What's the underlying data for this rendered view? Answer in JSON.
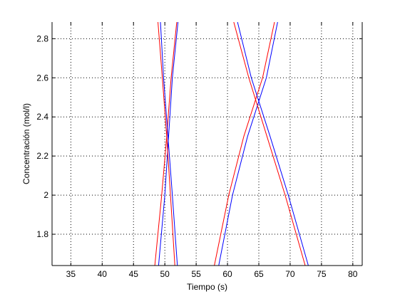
{
  "chart_data": {
    "type": "line",
    "title": "",
    "xlabel": "Tiempo (s)",
    "ylabel": "Concentración (mol/l)",
    "xlim": [
      32,
      81.5
    ],
    "ylim": [
      1.64,
      2.885
    ],
    "xticks": [
      35,
      40,
      45,
      50,
      55,
      60,
      65,
      70,
      75,
      80
    ],
    "yticks": [
      1.8,
      2,
      2.2,
      2.4,
      2.6,
      2.8
    ],
    "ytick_labels": [
      "1.8",
      "2",
      "2.2",
      "2.4",
      "2.6",
      "2.8"
    ],
    "grid": true,
    "grid_style": "dotted",
    "legend": "none",
    "series": [
      {
        "color": "#ff0000",
        "x": [
          48.4,
          49.5,
          50.3,
          51.0,
          51.9
        ],
        "y": [
          1.64,
          2.0,
          2.3,
          2.6,
          2.885
        ]
      },
      {
        "color": "#0000ff",
        "x": [
          49.0,
          50.0,
          50.6,
          51.2,
          52.1
        ],
        "y": [
          1.64,
          2.0,
          2.3,
          2.6,
          2.885
        ]
      },
      {
        "color": "#ff0000",
        "x": [
          51.6,
          50.9,
          50.3,
          49.6,
          48.9
        ],
        "y": [
          1.64,
          2.0,
          2.3,
          2.6,
          2.885
        ]
      },
      {
        "color": "#0000ff",
        "x": [
          52.0,
          51.2,
          50.5,
          49.8,
          49.3
        ],
        "y": [
          1.64,
          2.0,
          2.3,
          2.6,
          2.885
        ]
      },
      {
        "color": "#ff0000",
        "x": [
          57.9,
          60.2,
          62.6,
          65.6,
          67.5
        ],
        "y": [
          1.64,
          2.0,
          2.3,
          2.6,
          2.885
        ]
      },
      {
        "color": "#0000ff",
        "x": [
          58.6,
          60.8,
          63.2,
          66.2,
          68.0
        ],
        "y": [
          1.64,
          2.0,
          2.3,
          2.6,
          2.885
        ]
      },
      {
        "color": "#ff0000",
        "x": [
          72.4,
          69.2,
          66.3,
          63.4,
          61.0
        ],
        "y": [
          1.64,
          2.0,
          2.3,
          2.6,
          2.885
        ]
      },
      {
        "color": "#0000ff",
        "x": [
          72.9,
          69.7,
          66.8,
          63.8,
          61.6
        ],
        "y": [
          1.64,
          2.0,
          2.3,
          2.6,
          2.885
        ]
      }
    ]
  }
}
